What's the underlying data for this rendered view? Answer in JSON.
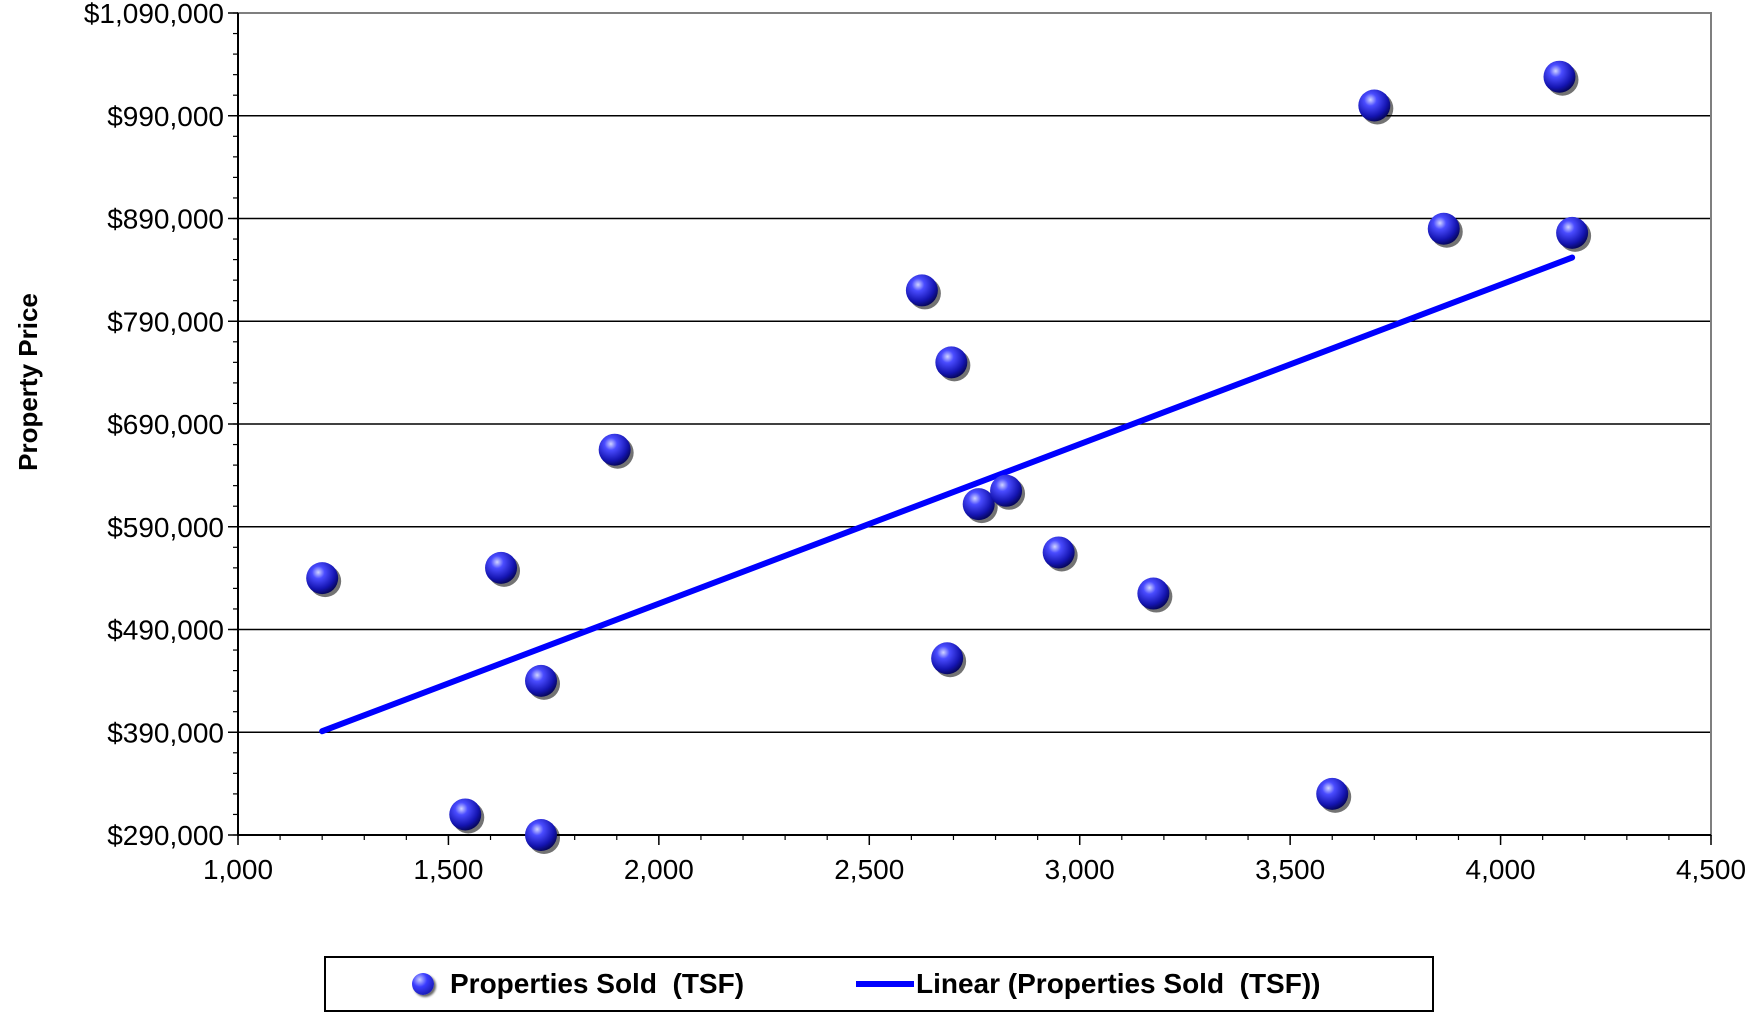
{
  "chart_data": {
    "type": "scatter",
    "title": "",
    "xlabel": "",
    "ylabel": "Property Price",
    "xlim": [
      1000,
      4500
    ],
    "ylim": [
      290000,
      1090000
    ],
    "x_ticks": [
      1000,
      1500,
      2000,
      2500,
      3000,
      3500,
      4000,
      4500
    ],
    "x_tick_labels": [
      "1,000",
      "1,500",
      "2,000",
      "2,500",
      "3,000",
      "3,500",
      "4,000",
      "4,500"
    ],
    "y_ticks": [
      290000,
      390000,
      490000,
      590000,
      690000,
      790000,
      890000,
      990000,
      1090000
    ],
    "y_tick_labels": [
      "$290,000",
      "$390,000",
      "$490,000",
      "$590,000",
      "$690,000",
      "$790,000",
      "$890,000",
      "$990,000",
      "$1,090,000"
    ],
    "grid": "horizontal",
    "legend_position": "bottom",
    "series": [
      {
        "name": "Properties Sold  (TSF)",
        "kind": "scatter",
        "color": "#1a1aee",
        "points": [
          {
            "x": 1200,
            "y": 540000
          },
          {
            "x": 1540,
            "y": 310000
          },
          {
            "x": 1625,
            "y": 550000
          },
          {
            "x": 1720,
            "y": 440000
          },
          {
            "x": 1720,
            "y": 290000
          },
          {
            "x": 1895,
            "y": 665000
          },
          {
            "x": 2625,
            "y": 820000
          },
          {
            "x": 2685,
            "y": 462000
          },
          {
            "x": 2695,
            "y": 750000
          },
          {
            "x": 2760,
            "y": 612000
          },
          {
            "x": 2825,
            "y": 625000
          },
          {
            "x": 2950,
            "y": 565000
          },
          {
            "x": 3175,
            "y": 525000
          },
          {
            "x": 3600,
            "y": 330000
          },
          {
            "x": 3700,
            "y": 1000000
          },
          {
            "x": 3865,
            "y": 880000
          },
          {
            "x": 4140,
            "y": 1028000
          },
          {
            "x": 4170,
            "y": 876000
          }
        ]
      },
      {
        "name": "Linear (Properties Sold  (TSF))",
        "kind": "trendline",
        "color": "#0000ff",
        "points": [
          {
            "x": 1200,
            "y": 391000
          },
          {
            "x": 4170,
            "y": 852000
          }
        ]
      }
    ]
  },
  "legend": {
    "scatter_label": "Properties Sold  (TSF)",
    "line_label": "Linear (Properties Sold  (TSF))"
  }
}
